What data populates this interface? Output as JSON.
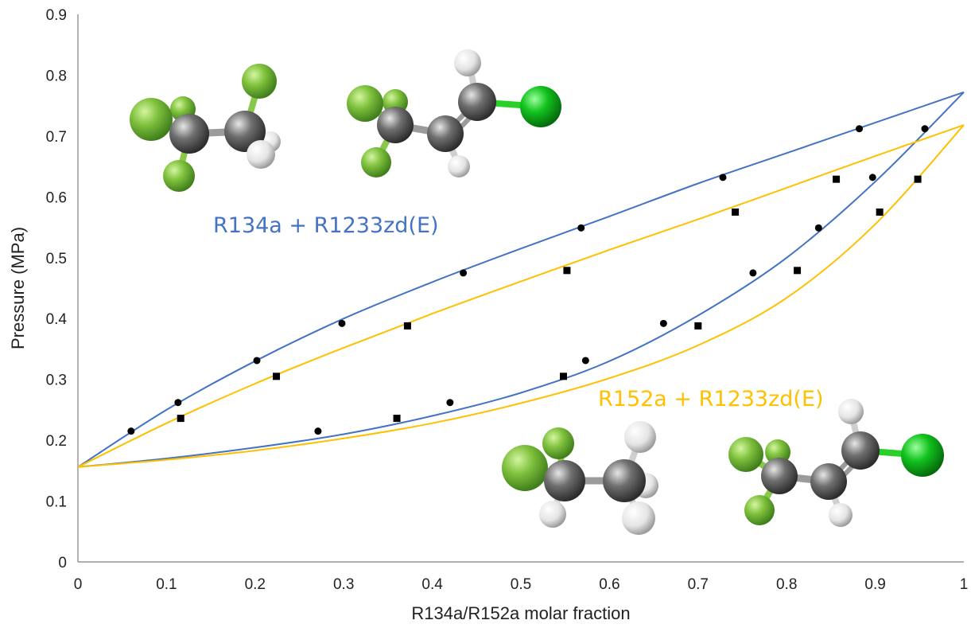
{
  "chart_data": {
    "type": "scatter",
    "xlabel": "R134a/R152a molar fraction",
    "ylabel": "Pressure (MPa)",
    "xlim": [
      0,
      1
    ],
    "ylim": [
      0,
      0.9
    ],
    "x_ticks": [
      "0",
      "0.1",
      "0.2",
      "0.3",
      "0.4",
      "0.5",
      "0.6",
      "0.7",
      "0.8",
      "0.9",
      "1"
    ],
    "y_ticks": [
      "0",
      "0.1",
      "0.2",
      "0.3",
      "0.4",
      "0.5",
      "0.6",
      "0.7",
      "0.8",
      "0.9"
    ],
    "grid": false,
    "colors": {
      "blue": "#4472C4",
      "yellow": "#FFC000",
      "marker": "#000000"
    },
    "series": [
      {
        "name": "R134a + R1233zd(E)",
        "color": "#4472C4",
        "marker": "circle",
        "bubble_points": [
          {
            "x": 0.06,
            "y": 0.215
          },
          {
            "x": 0.113,
            "y": 0.262
          },
          {
            "x": 0.202,
            "y": 0.331
          },
          {
            "x": 0.298,
            "y": 0.392
          },
          {
            "x": 0.435,
            "y": 0.475
          },
          {
            "x": 0.568,
            "y": 0.549
          },
          {
            "x": 0.728,
            "y": 0.632
          },
          {
            "x": 0.882,
            "y": 0.712
          },
          {
            "x": 0.956,
            "y": 0.712
          }
        ],
        "dew_points": [
          {
            "x": 0.271,
            "y": 0.215
          },
          {
            "x": 0.42,
            "y": 0.262
          },
          {
            "x": 0.573,
            "y": 0.331
          },
          {
            "x": 0.661,
            "y": 0.392
          },
          {
            "x": 0.762,
            "y": 0.475
          },
          {
            "x": 0.836,
            "y": 0.549
          },
          {
            "x": 0.897,
            "y": 0.632
          }
        ],
        "bubble_curve": [
          {
            "x": 0,
            "y": 0.156
          },
          {
            "x": 0.1,
            "y": 0.25
          },
          {
            "x": 0.2,
            "y": 0.33
          },
          {
            "x": 0.3,
            "y": 0.4
          },
          {
            "x": 0.4,
            "y": 0.46
          },
          {
            "x": 0.5,
            "y": 0.515
          },
          {
            "x": 0.6,
            "y": 0.568
          },
          {
            "x": 0.7,
            "y": 0.622
          },
          {
            "x": 0.8,
            "y": 0.672
          },
          {
            "x": 0.9,
            "y": 0.722
          },
          {
            "x": 1,
            "y": 0.772
          }
        ],
        "dew_curve": [
          {
            "x": 0,
            "y": 0.156
          },
          {
            "x": 0.1,
            "y": 0.17
          },
          {
            "x": 0.2,
            "y": 0.188
          },
          {
            "x": 0.3,
            "y": 0.21
          },
          {
            "x": 0.4,
            "y": 0.24
          },
          {
            "x": 0.5,
            "y": 0.278
          },
          {
            "x": 0.6,
            "y": 0.33
          },
          {
            "x": 0.7,
            "y": 0.405
          },
          {
            "x": 0.8,
            "y": 0.5
          },
          {
            "x": 0.9,
            "y": 0.625
          },
          {
            "x": 1,
            "y": 0.772
          }
        ]
      },
      {
        "name": "R152a + R1233zd(E)",
        "color": "#FFC000",
        "marker": "square",
        "bubble_points": [
          {
            "x": 0.116,
            "y": 0.236
          },
          {
            "x": 0.224,
            "y": 0.305
          },
          {
            "x": 0.372,
            "y": 0.388
          },
          {
            "x": 0.552,
            "y": 0.479
          },
          {
            "x": 0.742,
            "y": 0.575
          },
          {
            "x": 0.856,
            "y": 0.629
          },
          {
            "x": 0.948,
            "y": 0.629
          }
        ],
        "dew_points": [
          {
            "x": 0.36,
            "y": 0.236
          },
          {
            "x": 0.548,
            "y": 0.305
          },
          {
            "x": 0.7,
            "y": 0.388
          },
          {
            "x": 0.812,
            "y": 0.479
          },
          {
            "x": 0.905,
            "y": 0.575
          }
        ],
        "bubble_curve": [
          {
            "x": 0,
            "y": 0.156
          },
          {
            "x": 0.1,
            "y": 0.228
          },
          {
            "x": 0.2,
            "y": 0.293
          },
          {
            "x": 0.3,
            "y": 0.352
          },
          {
            "x": 0.4,
            "y": 0.408
          },
          {
            "x": 0.5,
            "y": 0.461
          },
          {
            "x": 0.6,
            "y": 0.513
          },
          {
            "x": 0.7,
            "y": 0.563
          },
          {
            "x": 0.8,
            "y": 0.615
          },
          {
            "x": 0.9,
            "y": 0.667
          },
          {
            "x": 1,
            "y": 0.718
          }
        ],
        "dew_curve": [
          {
            "x": 0,
            "y": 0.156
          },
          {
            "x": 0.1,
            "y": 0.168
          },
          {
            "x": 0.2,
            "y": 0.183
          },
          {
            "x": 0.3,
            "y": 0.203
          },
          {
            "x": 0.4,
            "y": 0.228
          },
          {
            "x": 0.5,
            "y": 0.261
          },
          {
            "x": 0.6,
            "y": 0.302
          },
          {
            "x": 0.7,
            "y": 0.356
          },
          {
            "x": 0.8,
            "y": 0.434
          },
          {
            "x": 0.9,
            "y": 0.555
          },
          {
            "x": 1,
            "y": 0.718
          }
        ]
      }
    ],
    "annotations": [
      "R134a + R1233zd(E)",
      "R152a + R1233zd(E)"
    ]
  }
}
